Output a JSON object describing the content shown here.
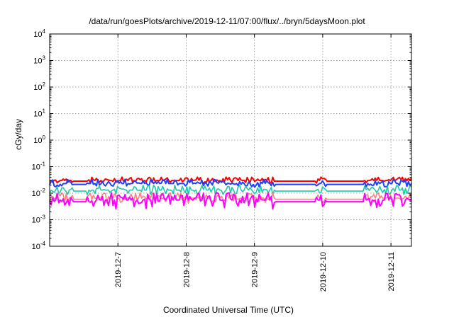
{
  "chart_data": {
    "type": "line",
    "title": "/data/run/goesPlots/archive/2019-12-11/07:00/flux/../bryn/5daysMoon.plot",
    "xlabel": "Coordinated Universal Time (UTC)",
    "ylabel": "cGy/day",
    "y_scale": "log",
    "ylim_exp": [
      -4,
      4
    ],
    "y_ticks": [
      {
        "base": "10",
        "exp": "4"
      },
      {
        "base": "10",
        "exp": "3"
      },
      {
        "base": "10",
        "exp": "2"
      },
      {
        "base": "10",
        "exp": "1"
      },
      {
        "base": "10",
        "exp": "0"
      },
      {
        "base": "10",
        "exp": "-1"
      },
      {
        "base": "10",
        "exp": "-2"
      },
      {
        "base": "10",
        "exp": "-3"
      },
      {
        "base": "10",
        "exp": "-4"
      }
    ],
    "xlim": [
      "2019-12-06 00:00",
      "2019-12-11 07:00"
    ],
    "x_ticks": [
      "2019-12-7",
      "2019-12-8",
      "2019-12-9",
      "2019-12-10",
      "2019-12-11"
    ],
    "x_tick_values": [
      1.0,
      2.0,
      3.0,
      4.0,
      5.0
    ],
    "x_range_days": [
      0.0,
      5.3
    ],
    "grid": true,
    "legend": "none",
    "series": [
      {
        "color": "#ff0000",
        "baseline": 0.03,
        "variability": 0.35,
        "seed": 11,
        "width": 2
      },
      {
        "color": "#1f3fff",
        "baseline": 0.023,
        "variability": 0.45,
        "seed": 23,
        "width": 2
      },
      {
        "color": "#20c8a8",
        "baseline": 0.013,
        "variability": 0.55,
        "seed": 37,
        "width": 1.6
      },
      {
        "color": "#ff8080",
        "baseline": 0.0065,
        "variability": 0.6,
        "seed": 41,
        "width": 1.6
      },
      {
        "color": "#ff00ff",
        "baseline": 0.0055,
        "variability": 0.9,
        "seed": 53,
        "width": 2
      }
    ]
  }
}
